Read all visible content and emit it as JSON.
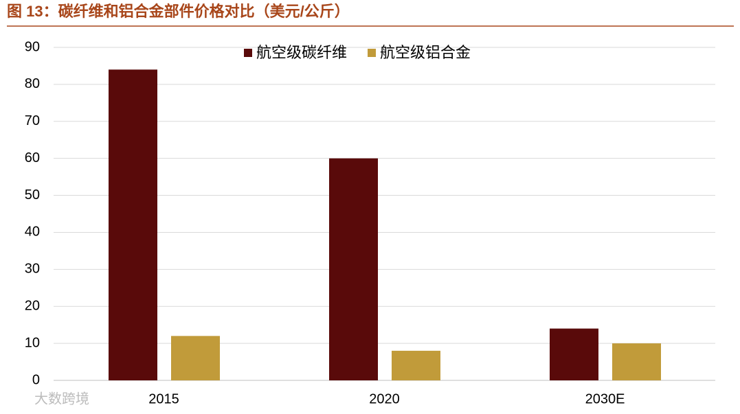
{
  "chart_data": {
    "type": "bar",
    "title": "图 13：碳纤维和铝合金部件价格对比（美元/公斤）",
    "categories": [
      "2015",
      "2020",
      "2030E"
    ],
    "series": [
      {
        "name": "航空级碳纤维",
        "color": "#590a0a",
        "values": [
          84,
          60,
          14
        ]
      },
      {
        "name": "航空级铝合金",
        "color": "#c19b3a",
        "values": [
          12,
          8,
          10
        ]
      }
    ],
    "ylim": [
      0,
      90
    ],
    "yticks": [
      0,
      10,
      20,
      30,
      40,
      50,
      60,
      70,
      80,
      90
    ],
    "grid": true,
    "legend": "top"
  },
  "watermark": "大数跨境"
}
